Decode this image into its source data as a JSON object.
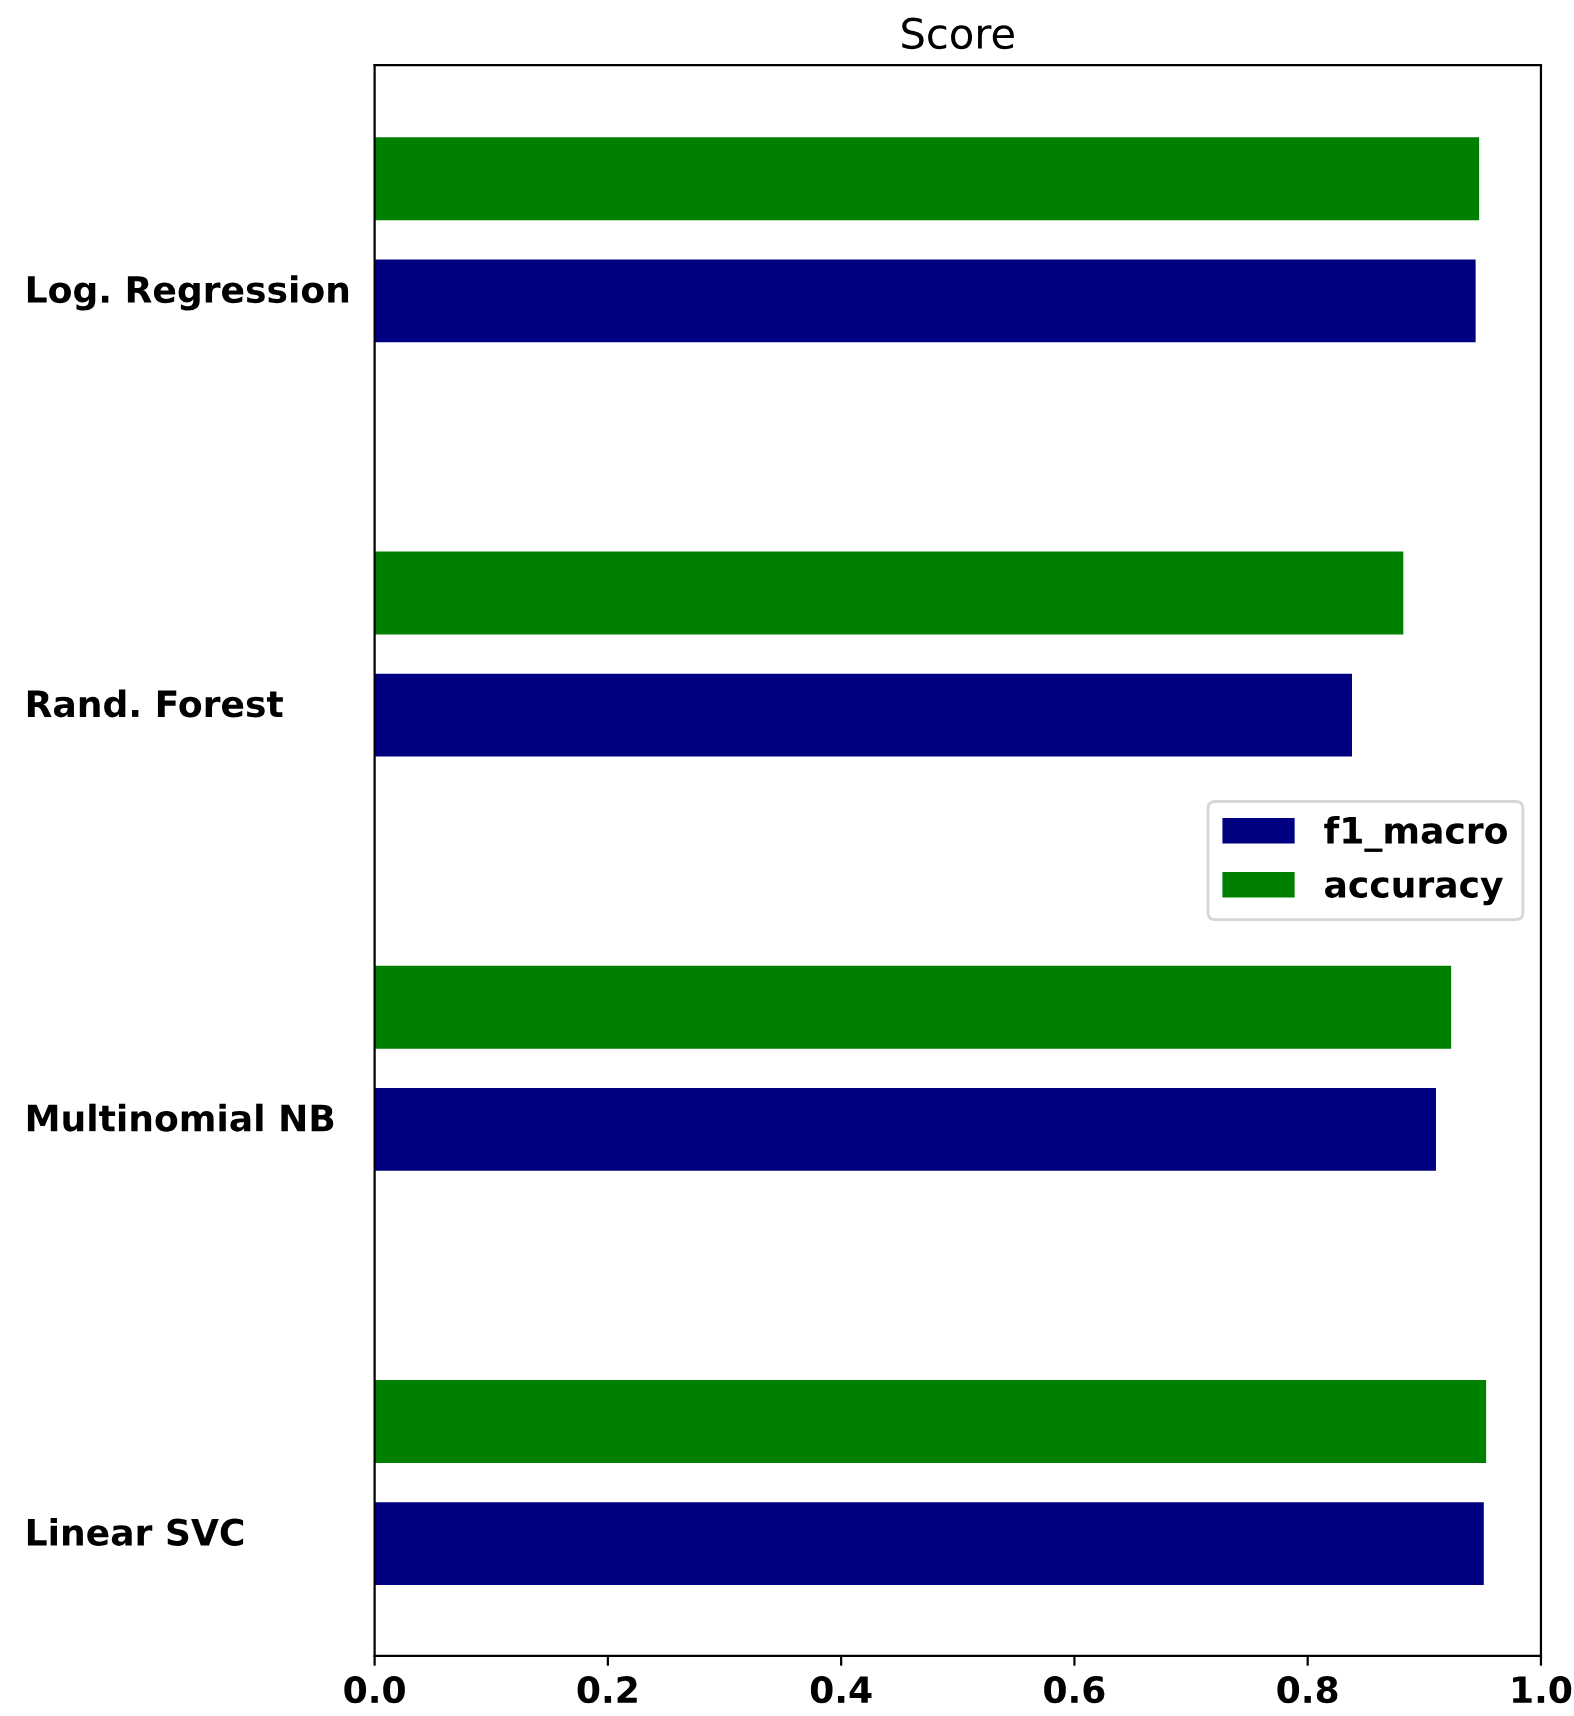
{
  "chart_data": {
    "type": "bar",
    "orientation": "horizontal",
    "title": "Score",
    "categories": [
      "Log. Regression",
      "Rand. Forest",
      "Multinomial NB",
      "Linear SVC"
    ],
    "series": [
      {
        "name": "f1_macro",
        "color": "#000080",
        "values": [
          0.944,
          0.838,
          0.91,
          0.951
        ]
      },
      {
        "name": "accuracy",
        "color": "#008000",
        "values": [
          0.947,
          0.882,
          0.923,
          0.953
        ]
      }
    ],
    "xlim": [
      0,
      1
    ],
    "xticks": [
      {
        "value": 0,
        "label": "0.0"
      },
      0.2,
      0.4,
      0.6,
      0.8,
      {
        "value": 1,
        "label": "1.0"
      }
    ],
    "grid": false,
    "legend": "right"
  }
}
